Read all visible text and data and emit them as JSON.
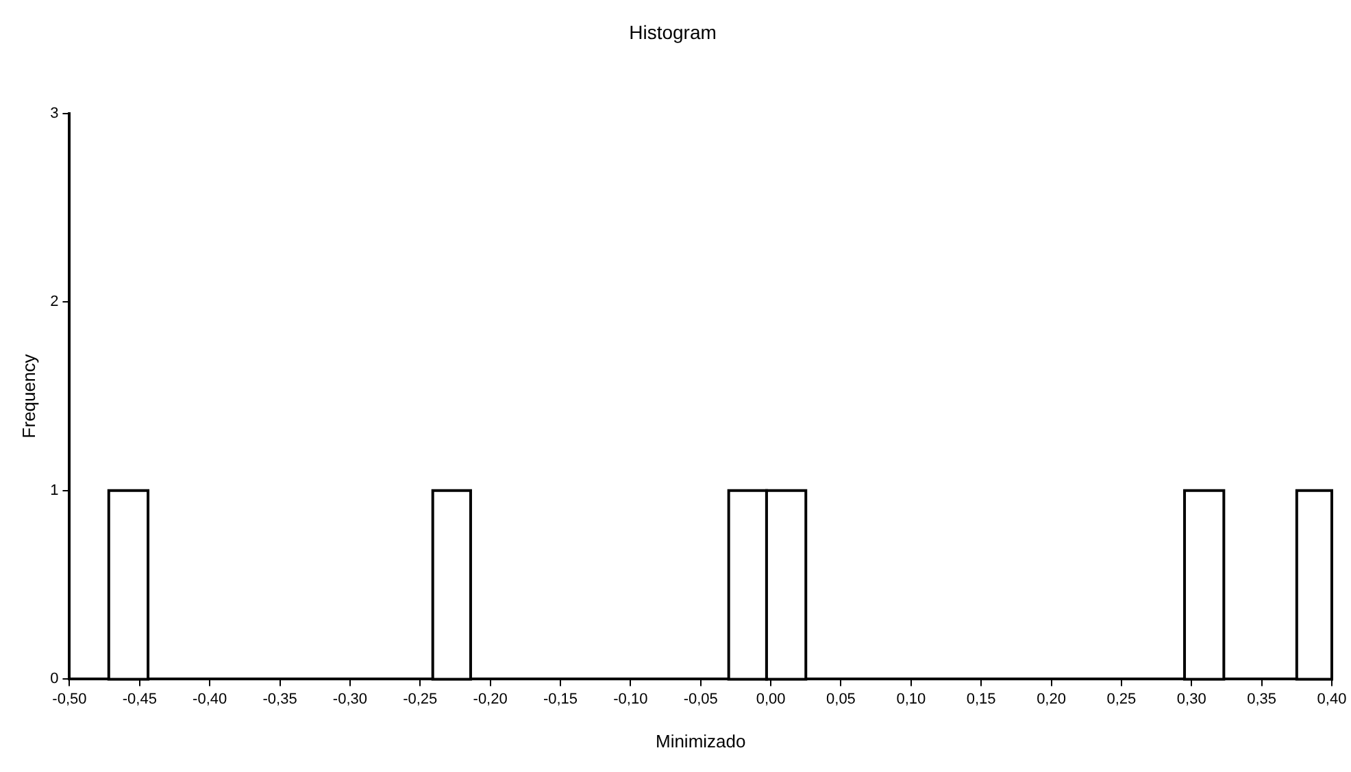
{
  "chart_data": {
    "type": "histogram",
    "title": "Histogram",
    "xlabel": "Minimizado",
    "ylabel": "Frequency",
    "bins": [
      -0.472,
      -0.444,
      -0.241,
      -0.214,
      -0.03,
      -0.003,
      0.025,
      0.295,
      0.323,
      0.375,
      0.4
    ],
    "values": [
      1,
      0,
      1,
      0,
      1,
      1,
      0,
      1,
      0,
      1
    ],
    "color": "#ffffff",
    "xlim": [
      -0.5,
      0.4
    ],
    "xticks": [
      {
        "value": -0.5,
        "label": "-0,50"
      },
      {
        "value": -0.45,
        "label": "-0,45"
      },
      {
        "value": -0.4,
        "label": "-0,40"
      },
      {
        "value": -0.35,
        "label": "-0,35"
      },
      {
        "value": -0.3,
        "label": "-0,30"
      },
      {
        "value": -0.25,
        "label": "-0,25"
      },
      {
        "value": -0.2,
        "label": "-0,20"
      },
      {
        "value": -0.15,
        "label": "-0,15"
      },
      {
        "value": -0.1,
        "label": "-0,10"
      },
      {
        "value": -0.05,
        "label": "-0,05"
      },
      {
        "value": 0,
        "label": "0,00"
      },
      {
        "value": 0.05,
        "label": "0,05"
      },
      {
        "value": 0.1,
        "label": "0,10"
      },
      {
        "value": 0.15,
        "label": "0,15"
      },
      {
        "value": 0.2,
        "label": "0,20"
      },
      {
        "value": 0.25,
        "label": "0,25"
      },
      {
        "value": 0.3,
        "label": "0,30"
      },
      {
        "value": 0.35,
        "label": "0,35"
      },
      {
        "value": 0.4,
        "label": "0,40"
      }
    ],
    "ylim": [
      0,
      3
    ],
    "yticks": [
      0,
      1,
      2,
      3
    ],
    "grid": false,
    "legend": false
  }
}
